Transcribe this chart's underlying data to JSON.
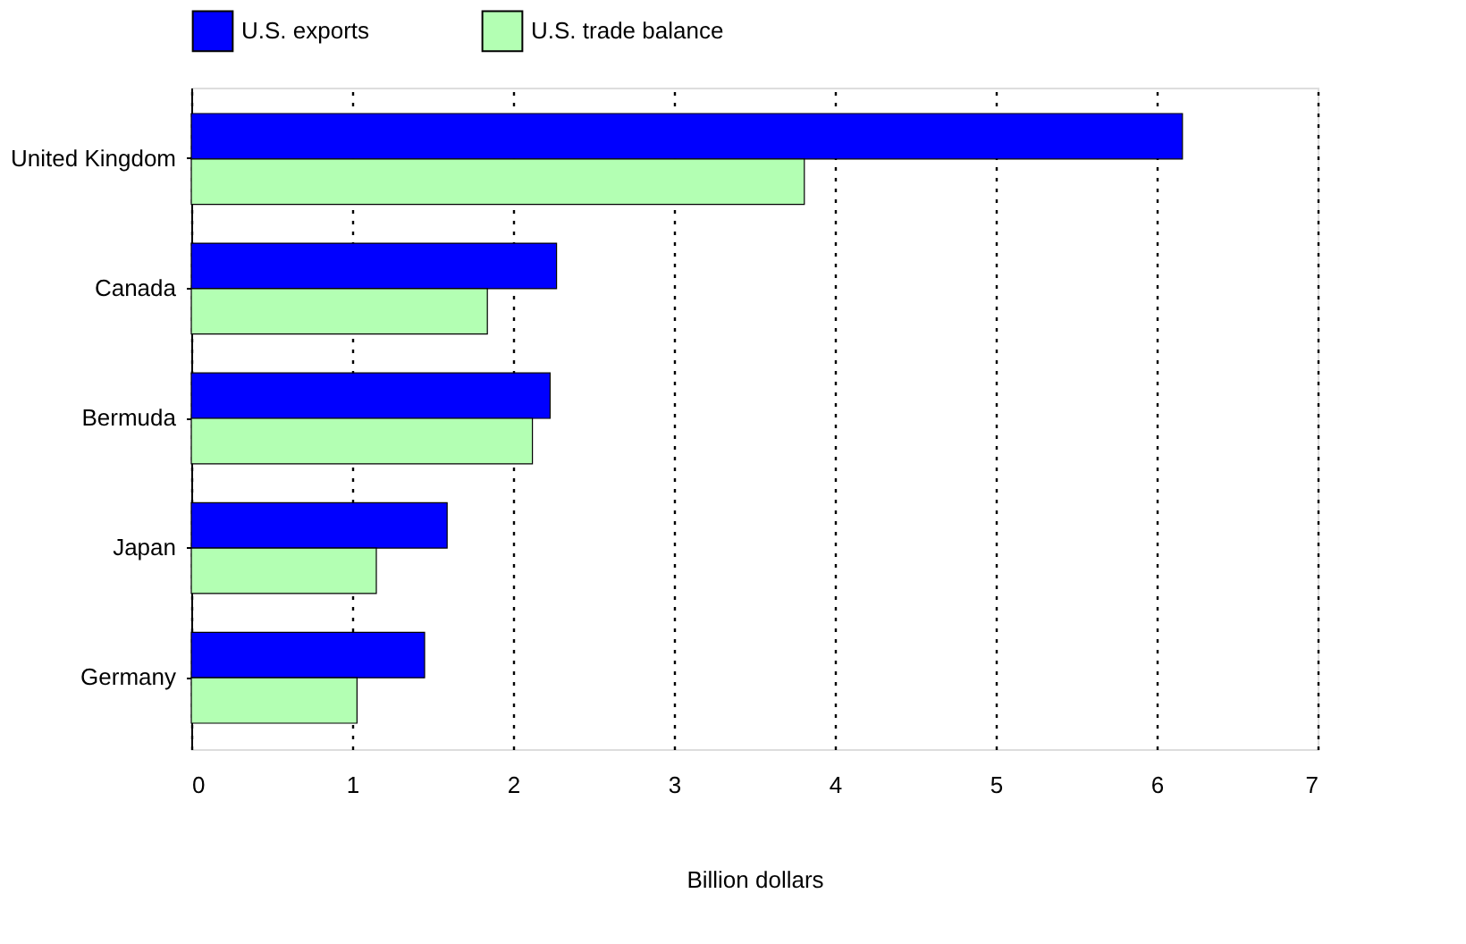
{
  "chart_data": {
    "type": "bar",
    "orientation": "horizontal",
    "xlabel": "Billion dollars",
    "categories": [
      "United Kingdom",
      "Canada",
      "Bermuda",
      "Japan",
      "Germany"
    ],
    "series": [
      {
        "name": "U.S. exports",
        "color": "#0000ff",
        "values": [
          6.16,
          2.27,
          2.23,
          1.59,
          1.45
        ]
      },
      {
        "name": "U.S. trade balance",
        "color": "#b3ffb3",
        "values": [
          3.81,
          1.84,
          2.12,
          1.15,
          1.03
        ]
      }
    ],
    "xlim": [
      0,
      7
    ],
    "xticks": [
      0,
      1,
      2,
      3,
      4,
      5,
      6,
      7
    ],
    "grid": "x",
    "legend": "top"
  }
}
